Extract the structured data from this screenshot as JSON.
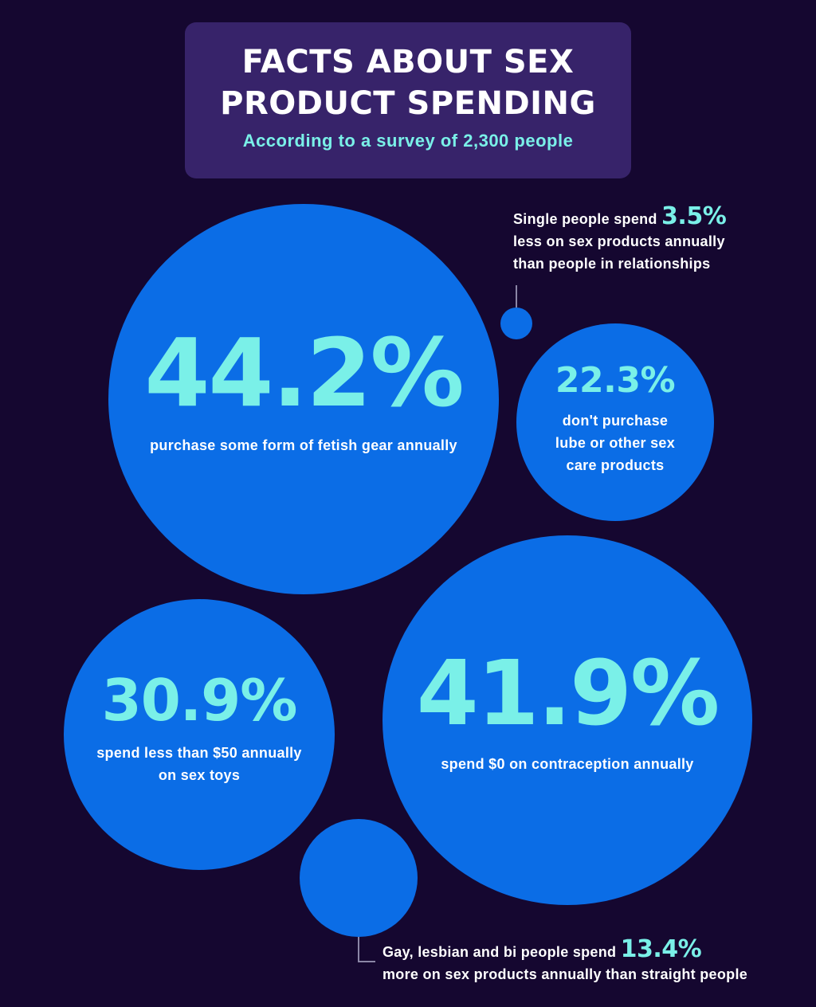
{
  "header": {
    "title_line1": "FACTS ABOUT SEX",
    "title_line2": "PRODUCT SPENDING",
    "subtitle": "According to a survey of 2,300 people"
  },
  "colors": {
    "background": "#150730",
    "header_bg": "#37236a",
    "bubble": "#0b6de6",
    "accent": "#7af0e8",
    "text": "#ffffff"
  },
  "chart_data": {
    "type": "bubble",
    "title": "FACTS ABOUT SEX PRODUCT SPENDING",
    "subtitle": "According to a survey of 2,300 people",
    "stats": [
      {
        "value": "44.2%",
        "caption": "purchase some form of fetish gear annually"
      },
      {
        "value": "22.3%",
        "caption_lines": [
          "don't purchase",
          "lube or other sex",
          "care products"
        ]
      },
      {
        "value": "30.9%",
        "caption_lines": [
          "spend less than $50 annually",
          "on sex toys"
        ]
      },
      {
        "value": "41.9%",
        "caption": "spend $0 on contraception annually"
      },
      {
        "value": "3.5%",
        "text_before": "Single people spend",
        "text_after_lines": [
          "less on sex products annually",
          "than people in relationships"
        ]
      },
      {
        "value": "13.4%",
        "text_before": "Gay, lesbian and bi people spend",
        "text_after": "more on sex products annually than straight people"
      }
    ]
  }
}
